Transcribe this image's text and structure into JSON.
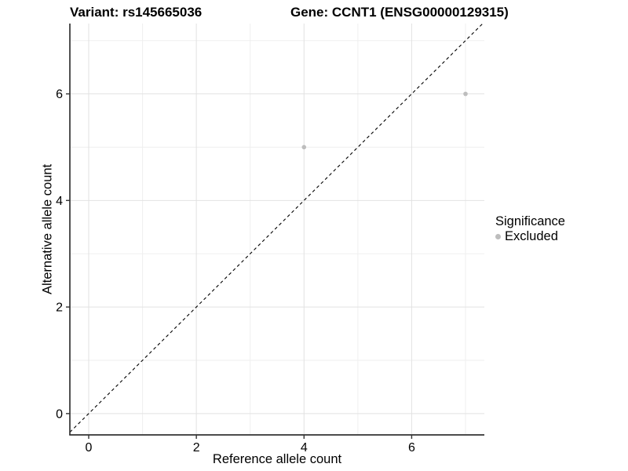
{
  "chart_data": {
    "type": "scatter",
    "title_left": "Variant: rs145665036",
    "title_right": "Gene: CCNT1 (ENSG00000129315)",
    "xlabel": "Reference allele count",
    "ylabel": "Alternative allele count",
    "xlim": [
      -0.35,
      7.35
    ],
    "ylim": [
      -0.4,
      7.32
    ],
    "x_major_ticks": [
      0,
      2,
      4,
      6
    ],
    "y_major_ticks": [
      0,
      2,
      4,
      6
    ],
    "x_minor_gridlines": [
      1,
      3,
      5,
      7
    ],
    "y_minor_gridlines": [
      1,
      3,
      5,
      7
    ],
    "grid": true,
    "identity_line": {
      "slope": 1,
      "intercept": 0,
      "style": "dashed",
      "color": "#000000"
    },
    "series": [
      {
        "name": "Excluded",
        "color": "#bdbdbd",
        "points": [
          {
            "x": 4,
            "y": 5
          },
          {
            "x": 7,
            "y": 6
          }
        ]
      }
    ],
    "legend": {
      "title": "Significance",
      "position": "right",
      "items": [
        {
          "label": "Excluded",
          "color": "#bdbdbd"
        }
      ]
    },
    "colors": {
      "grid_major": "#e2e2e2",
      "grid_minor": "#efefef",
      "axis_line": "#333333",
      "tick": "#333333",
      "text": "#000000"
    }
  }
}
